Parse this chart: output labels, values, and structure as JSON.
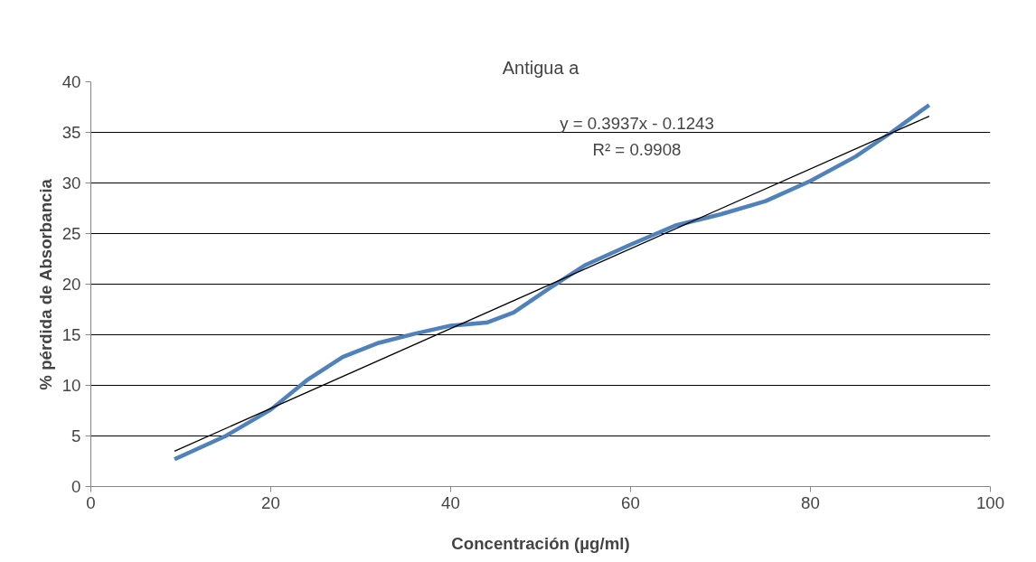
{
  "chart_data": {
    "type": "line",
    "title": "Antigua a",
    "xlabel": "Concentración (µg/ml)",
    "ylabel": "% pérdida de Absorbancia",
    "xlim": [
      0,
      100
    ],
    "xticks": [
      0,
      20,
      40,
      60,
      80,
      100
    ],
    "ylim": [
      0,
      40
    ],
    "yticks": [
      0,
      5,
      10,
      15,
      20,
      25,
      30,
      35,
      40
    ],
    "grid": "y",
    "series": [
      {
        "color": "#4f81bd",
        "x": [
          9.3,
          15,
          20,
          24,
          28,
          32,
          36,
          40,
          44,
          47,
          51,
          55,
          60,
          65,
          70,
          75,
          80,
          85,
          89,
          93.2
        ],
        "values": [
          2.7,
          5,
          7.6,
          10.5,
          12.8,
          14.2,
          15.1,
          15.9,
          16.2,
          17.2,
          19.6,
          21.9,
          23.9,
          25.8,
          26.9,
          28.2,
          30.2,
          32.6,
          35,
          37.7
        ]
      },
      {
        "type": "line",
        "color": "#000000",
        "x": [
          9.3,
          93.2
        ],
        "values": [
          3.5,
          36.6
        ]
      }
    ],
    "annotations": [
      "y = 0.3937x - 0.1243",
      "R² = 0.9908"
    ]
  }
}
